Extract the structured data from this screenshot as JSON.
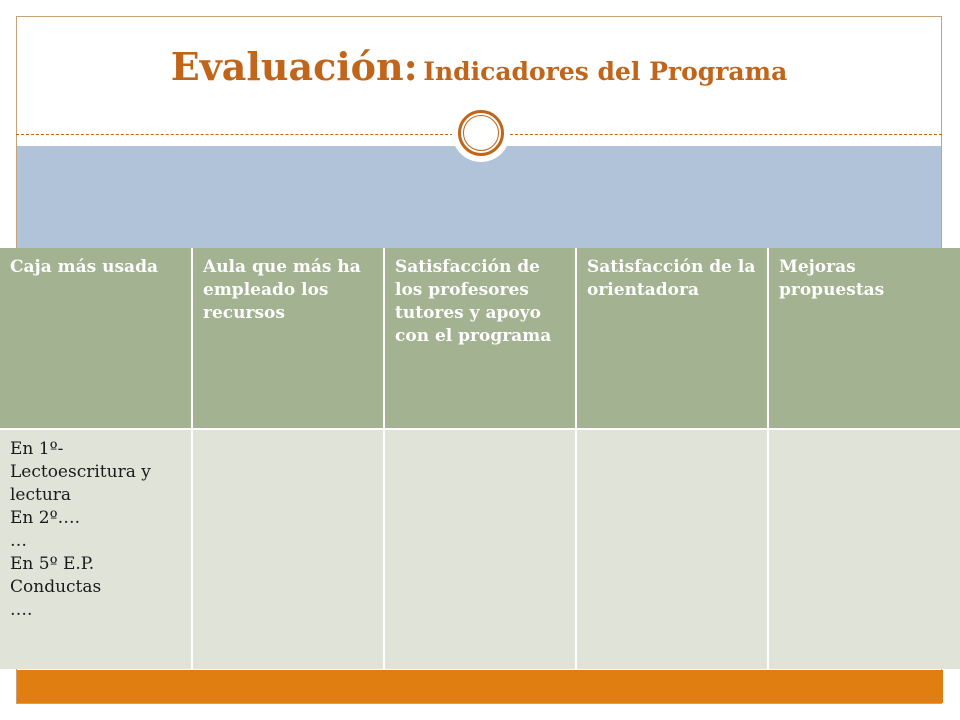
{
  "title": {
    "main": "Evaluación:",
    "sub": "Indicadores del Programa"
  },
  "colors": {
    "accent": "#c0651a",
    "blue_band": "#b0c3d8",
    "header_bg": "#a3b290",
    "cell_bg": "#dfe3d8",
    "bottom_bar": "#e07e12"
  },
  "icons": {
    "divider": "circle-ornament-icon"
  },
  "table": {
    "headers": [
      "Caja más usada",
      "Aula que más ha empleado los recursos",
      "Satisfacción de los profesores tutores y apoyo con el programa",
      "Satisfacción de la orientadora",
      "Mejoras propuestas"
    ],
    "row": {
      "col1_lines": [
        "En 1º-",
        "Lectoescritura y lectura",
        "En 2º….",
        "…",
        "En 5º E.P.",
        "Conductas",
        "…."
      ],
      "col2": "",
      "col3": "",
      "col4": "",
      "col5": ""
    }
  }
}
